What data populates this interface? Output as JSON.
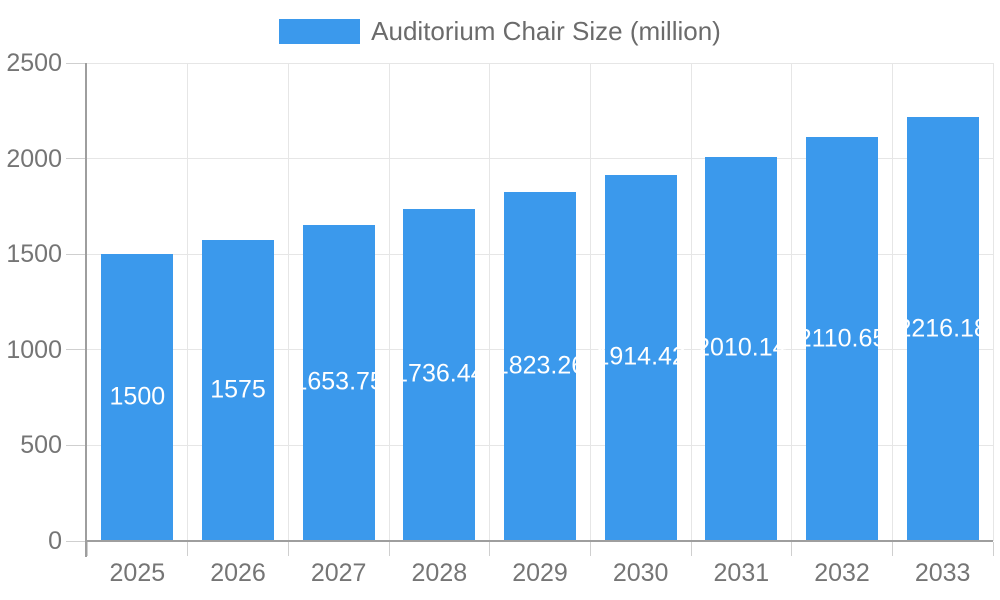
{
  "chart_data": {
    "type": "bar",
    "title": "Auditorium Chair Size (million)",
    "categories": [
      "2025",
      "2026",
      "2027",
      "2028",
      "2029",
      "2030",
      "2031",
      "2032",
      "2033"
    ],
    "values": [
      1500,
      1575,
      1653.75,
      1736.44,
      1823.26,
      1914.42,
      2010.14,
      2110.65,
      2216.18
    ],
    "bar_value_labels": [
      "1500",
      "1575",
      "1653.75",
      "1736.44",
      "1823.26",
      "1914.42",
      "2010.14",
      "2110.65",
      "2216.18"
    ],
    "xlabel": "",
    "ylabel": "",
    "ylim": [
      0,
      2500
    ],
    "yticks": [
      0,
      500,
      1000,
      1500,
      2000,
      2500
    ],
    "grid": true,
    "legend_position": "top",
    "colors": {
      "bar": "#3b99ec",
      "bar_value_text": "#ffffff",
      "axis_text": "#757575",
      "legend_text": "#6b6b6b",
      "gridline": "#e6e6e6",
      "tick": "#cfcfcf",
      "axis_line": "#9e9e9e"
    }
  }
}
